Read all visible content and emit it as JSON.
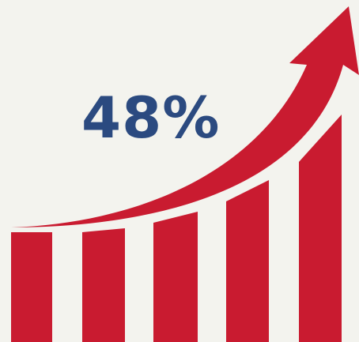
{
  "headline": {
    "value": "48%"
  },
  "colors": {
    "background": "#f3f3ee",
    "accent": "#c91b30",
    "text": "#2b4a80"
  },
  "graphic": {
    "icon": "rising-arrow-over-bars",
    "bar_count": 5
  }
}
